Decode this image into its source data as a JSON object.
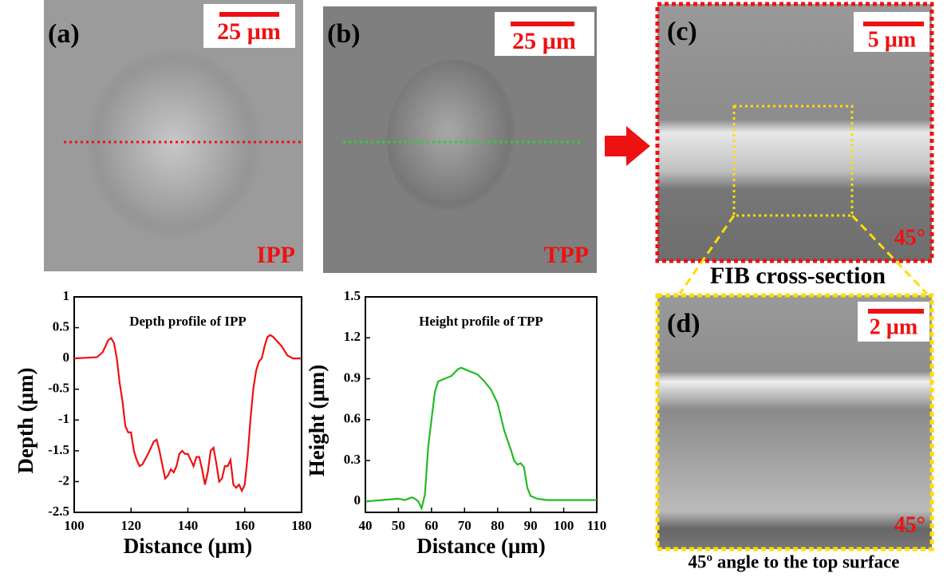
{
  "image_panels": [
    {
      "label": "(a)",
      "scale_bar": "25 µm",
      "tag": "IPP"
    },
    {
      "label": "(b)",
      "scale_bar": "25 µm",
      "tag": "TPP"
    },
    {
      "label": "(c)",
      "scale_bar": "5 µm",
      "tag": "45°",
      "caption": "FIB cross-section"
    },
    {
      "label": "(d)",
      "scale_bar": "2 µm",
      "tag": "45°",
      "caption": "45º angle to the top surface"
    }
  ],
  "chart_data": [
    {
      "type": "line",
      "title": "Depth profile of IPP",
      "x_label": "Distance (μm)",
      "y_label": "Depth (μm)",
      "series": [
        {
          "name": "IPP",
          "color": "#ee1111",
          "x": [
            100,
            108,
            110,
            112,
            113,
            114,
            115,
            116,
            117,
            118,
            119,
            120,
            121,
            122,
            123,
            124,
            126,
            128,
            129,
            130,
            132,
            133,
            134,
            135,
            136,
            137,
            138,
            139,
            140,
            141,
            142,
            143,
            144,
            145,
            146,
            147,
            148,
            149,
            150,
            151,
            152,
            153,
            154,
            155,
            156,
            157,
            158,
            159,
            160,
            161,
            162,
            163,
            164,
            165,
            166,
            167,
            168,
            169,
            170,
            171,
            173,
            175,
            177,
            180
          ],
          "values": [
            0,
            0.02,
            0.1,
            0.3,
            0.33,
            0.25,
            0,
            -0.4,
            -0.7,
            -1.1,
            -1.2,
            -1.2,
            -1.5,
            -1.65,
            -1.75,
            -1.72,
            -1.55,
            -1.35,
            -1.32,
            -1.5,
            -1.95,
            -1.9,
            -1.8,
            -1.85,
            -1.75,
            -1.55,
            -1.5,
            -1.55,
            -1.55,
            -1.65,
            -1.75,
            -1.6,
            -1.6,
            -1.8,
            -2.05,
            -1.85,
            -1.5,
            -1.45,
            -1.7,
            -2.0,
            -1.95,
            -1.75,
            -1.75,
            -1.65,
            -2.05,
            -2.1,
            -2.05,
            -2.15,
            -2.05,
            -1.6,
            -1.0,
            -0.5,
            -0.2,
            -0.05,
            0,
            0.2,
            0.35,
            0.38,
            0.35,
            0.3,
            0.2,
            0.05,
            0,
            0
          ]
        }
      ],
      "xlim": [
        100,
        180
      ],
      "xticks": [
        100,
        120,
        140,
        160,
        180
      ],
      "ylim": [
        -2.5,
        1
      ],
      "yticks": [
        1,
        0.5,
        0,
        -0.5,
        -1,
        -1.5,
        -2,
        -2.5
      ]
    },
    {
      "type": "line",
      "title": "Height profile of TPP",
      "x_label": "Distance (μm)",
      "y_label": "Height (μm)",
      "series": [
        {
          "name": "TPP",
          "color": "#22bb22",
          "x": [
            40,
            45,
            50,
            52,
            54,
            55,
            56,
            57,
            58,
            59,
            60,
            61,
            62,
            64,
            66,
            68,
            69,
            70,
            72,
            74,
            76,
            78,
            80,
            82,
            84,
            85,
            86,
            87,
            88,
            89,
            90,
            92,
            95,
            100,
            105,
            110
          ],
          "values": [
            0,
            0.01,
            0.02,
            0.01,
            0.03,
            0.02,
            0,
            -0.05,
            0.05,
            0.4,
            0.6,
            0.8,
            0.88,
            0.9,
            0.92,
            0.97,
            0.98,
            0.97,
            0.95,
            0.93,
            0.88,
            0.82,
            0.72,
            0.52,
            0.38,
            0.3,
            0.27,
            0.28,
            0.25,
            0.1,
            0.04,
            0.02,
            0.01,
            0.01,
            0.01,
            0.01
          ]
        }
      ],
      "xlim": [
        40,
        110
      ],
      "xticks": [
        40,
        50,
        60,
        70,
        80,
        90,
        100,
        110
      ],
      "ylim": [
        -0.08,
        1.5
      ],
      "yticks": [
        0,
        0.3,
        0.6,
        0.9,
        1.2,
        1.5
      ]
    }
  ]
}
